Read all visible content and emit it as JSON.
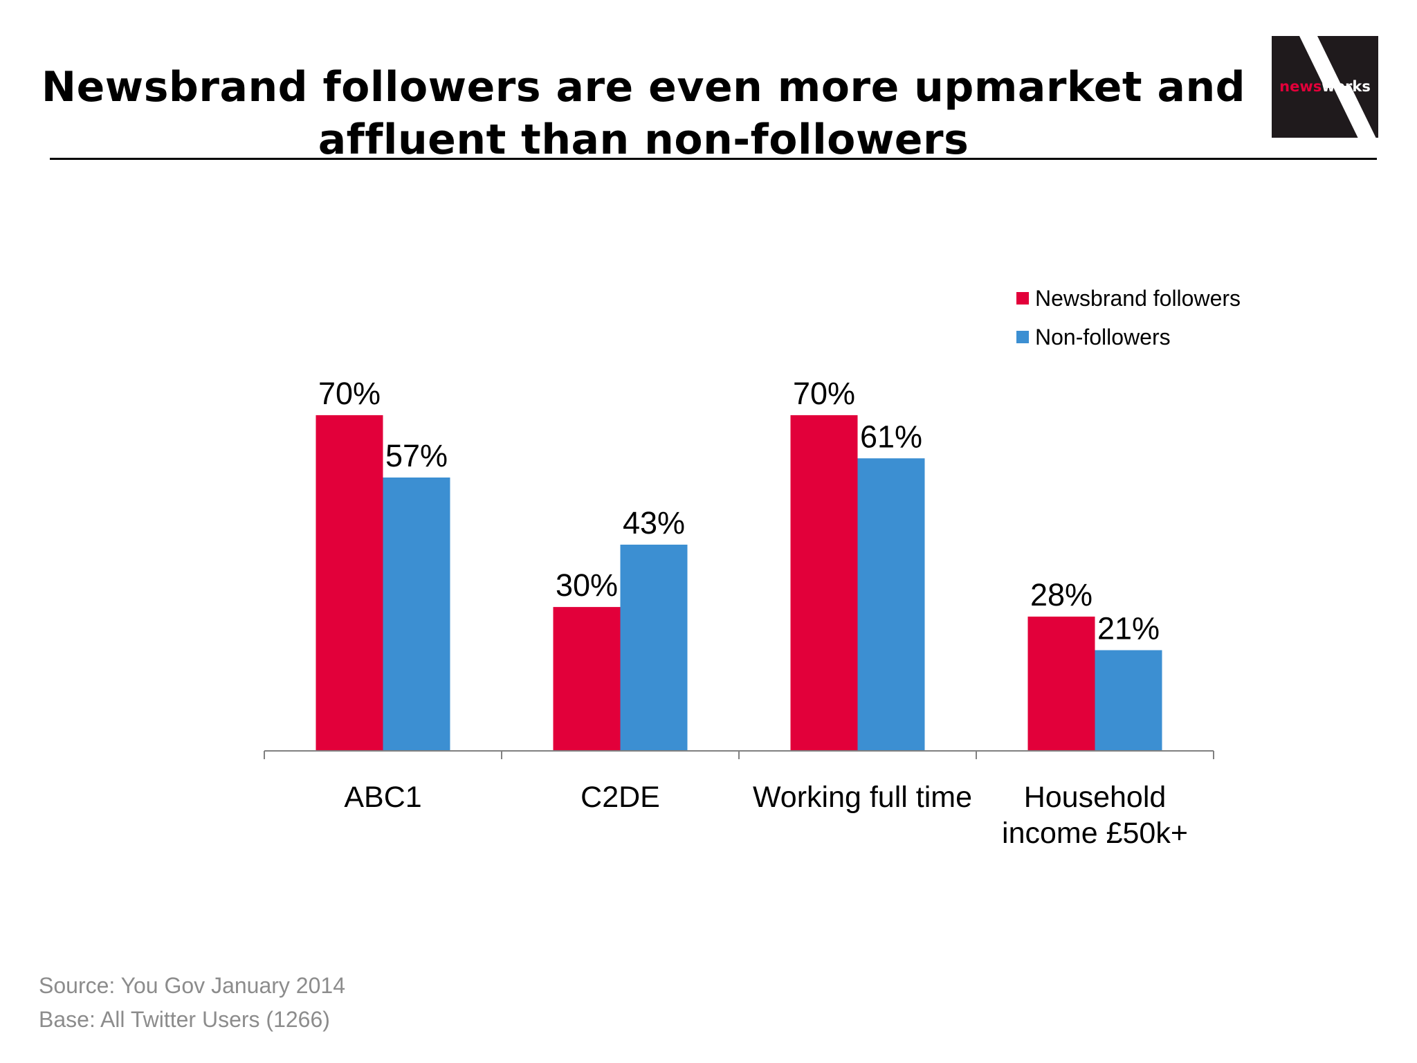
{
  "title": "Newsbrand followers are even more upmarket and affluent than non-followers",
  "title_lines": [
    "Newsbrand followers are even more upmarket and",
    "affluent than non-followers"
  ],
  "logo": {
    "text_part1": "news",
    "text_part2": "works"
  },
  "colors": {
    "followers": "#e2003a",
    "non_followers": "#3c8fd2",
    "axis": "#808080",
    "footer": "#8c8c8c"
  },
  "chart_data": {
    "type": "bar",
    "categories": [
      [
        "ABC1"
      ],
      [
        "C2DE"
      ],
      [
        "Working full time"
      ],
      [
        "Household",
        "income £50k+"
      ]
    ],
    "series": [
      {
        "name": "Newsbrand followers",
        "values": [
          70,
          30,
          70,
          28
        ],
        "labels": [
          "70%",
          "30%",
          "70%",
          "28%"
        ]
      },
      {
        "name": "Non-followers",
        "values": [
          57,
          43,
          61,
          21
        ],
        "labels": [
          "57%",
          "43%",
          "61%",
          "21%"
        ]
      }
    ],
    "ylim": [
      0,
      70
    ],
    "legend_position": "top-right",
    "grid": false
  },
  "footer": {
    "source": "Source: You Gov January 2014",
    "base": "Base: All Twitter Users (1266)"
  }
}
